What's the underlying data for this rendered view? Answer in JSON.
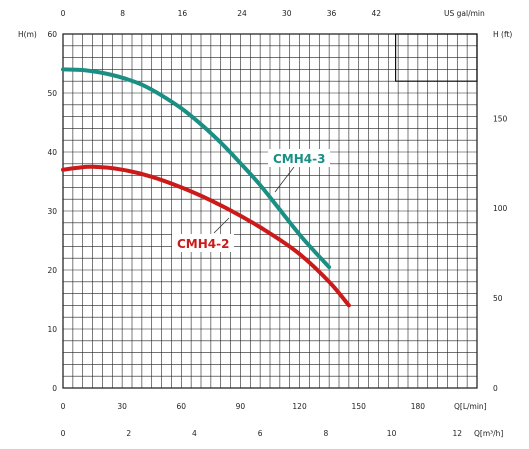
{
  "chart_data": {
    "type": "line",
    "axes": {
      "bottom1": {
        "label": "Q[L/min]",
        "ticks": [
          "0",
          "30",
          "60",
          "90",
          "120",
          "150",
          "180"
        ],
        "range": [
          0,
          210
        ]
      },
      "bottom2": {
        "label": "Q[m³/h]",
        "ticks": [
          "0",
          "2",
          "4",
          "6",
          "8",
          "10",
          "12"
        ],
        "range": [
          0,
          12.6
        ]
      },
      "top": {
        "label": "US gal/min",
        "ticks": [
          "0",
          "8",
          "16",
          "24",
          "30",
          "36",
          "42"
        ],
        "range": [
          0,
          55.5
        ]
      },
      "left": {
        "label": "H(m)",
        "ticks": [
          "0",
          "10",
          "20",
          "30",
          "40",
          "50",
          "60"
        ],
        "range": [
          0,
          60
        ]
      },
      "right": {
        "label": "H (ft)",
        "ticks": [
          "0",
          "50",
          "100",
          "150"
        ],
        "range": [
          0,
          196.9
        ]
      }
    },
    "grid": true,
    "series": [
      {
        "name": "CMH4-3",
        "color": "#1a8f84",
        "x": [
          0,
          10,
          20,
          30,
          40,
          50,
          60,
          70,
          80,
          90,
          100,
          110,
          120,
          128,
          135
        ],
        "y": [
          54,
          53.9,
          53.4,
          52.6,
          51.4,
          49.6,
          47.4,
          44.7,
          41.6,
          38.1,
          34.4,
          30.2,
          26.0,
          23.0,
          20.5
        ]
      },
      {
        "name": "CMH4-2",
        "color": "#cc1a1a",
        "x": [
          0,
          7,
          15,
          30,
          45,
          60,
          75,
          90,
          105,
          120,
          135,
          145
        ],
        "y": [
          37,
          37.3,
          37.5,
          37,
          35.8,
          34,
          31.8,
          29.2,
          26.2,
          22.7,
          18.0,
          14.0
        ]
      }
    ]
  }
}
